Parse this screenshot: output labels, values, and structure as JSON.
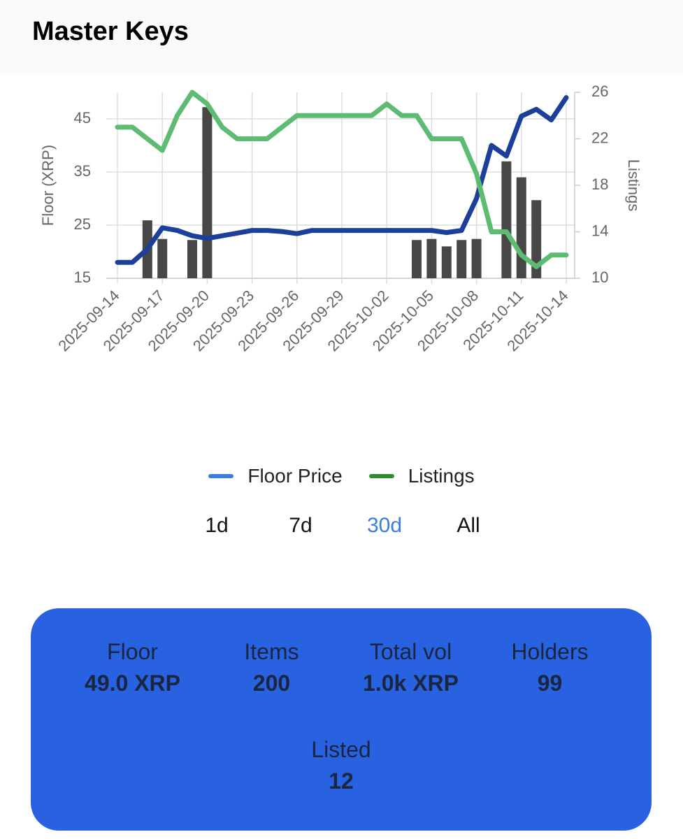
{
  "header": {
    "title": "Master Keys"
  },
  "chart_data": {
    "type": "line",
    "x": [
      "2025-09-14",
      "2025-09-15",
      "2025-09-16",
      "2025-09-17",
      "2025-09-18",
      "2025-09-19",
      "2025-09-20",
      "2025-09-21",
      "2025-09-22",
      "2025-09-23",
      "2025-09-24",
      "2025-09-25",
      "2025-09-26",
      "2025-09-27",
      "2025-09-28",
      "2025-09-29",
      "2025-09-30",
      "2025-10-01",
      "2025-10-02",
      "2025-10-03",
      "2025-10-04",
      "2025-10-05",
      "2025-10-06",
      "2025-10-07",
      "2025-10-08",
      "2025-10-09",
      "2025-10-10",
      "2025-10-11",
      "2025-10-12",
      "2025-10-13",
      "2025-10-14"
    ],
    "xticks": [
      "2025-09-14",
      "2025-09-17",
      "2025-09-20",
      "2025-09-23",
      "2025-09-26",
      "2025-09-29",
      "2025-10-02",
      "2025-10-05",
      "2025-10-08",
      "2025-10-11",
      "2025-10-14"
    ],
    "ylabel": "Floor (XRP)",
    "y2label": "Listings",
    "ylim": [
      15,
      50
    ],
    "yticks": [
      15,
      25,
      35,
      45
    ],
    "y2lim": [
      10,
      26
    ],
    "y2ticks": [
      10,
      14,
      18,
      22,
      26
    ],
    "grid": true,
    "series": [
      {
        "name": "Floor Price",
        "color": "#1c3f99",
        "legend_color": "#3b7ddd",
        "values": [
          18,
          18,
          20.5,
          24.5,
          24,
          23,
          22.5,
          23,
          23.5,
          24,
          24,
          23.8,
          23.4,
          24,
          24,
          24,
          24,
          24,
          24,
          24,
          24,
          24,
          23.6,
          24,
          30,
          40,
          38,
          45.5,
          46.8,
          44.8,
          49
        ]
      },
      {
        "name": "Listings",
        "color": "#5dbb72",
        "legend_color": "#2e8b2e",
        "axis": "y2",
        "values": [
          23,
          23,
          22,
          21,
          24,
          26,
          25,
          23,
          22,
          22,
          22,
          23,
          24,
          24,
          24,
          24,
          24,
          24,
          25,
          24,
          24,
          22,
          22,
          22,
          19,
          14,
          14,
          12,
          11,
          12,
          12
        ]
      }
    ],
    "bars": {
      "color": "#474747",
      "values": [
        null,
        null,
        25.9,
        22.4,
        null,
        22.2,
        47.2,
        null,
        null,
        null,
        null,
        null,
        null,
        null,
        null,
        null,
        null,
        null,
        null,
        null,
        22.2,
        22.4,
        21,
        22.2,
        22.4,
        null,
        37,
        34,
        29.7,
        null,
        null
      ]
    }
  },
  "ranges": {
    "options": [
      "1d",
      "7d",
      "30d",
      "All"
    ],
    "active": "30d"
  },
  "stats": [
    {
      "label": "Floor",
      "value": "49.0 XRP"
    },
    {
      "label": "Items",
      "value": "200"
    },
    {
      "label": "Total vol",
      "value": "1.0k XRP"
    },
    {
      "label": "Holders",
      "value": "99"
    },
    {
      "label": "Listed",
      "value": "12"
    }
  ]
}
